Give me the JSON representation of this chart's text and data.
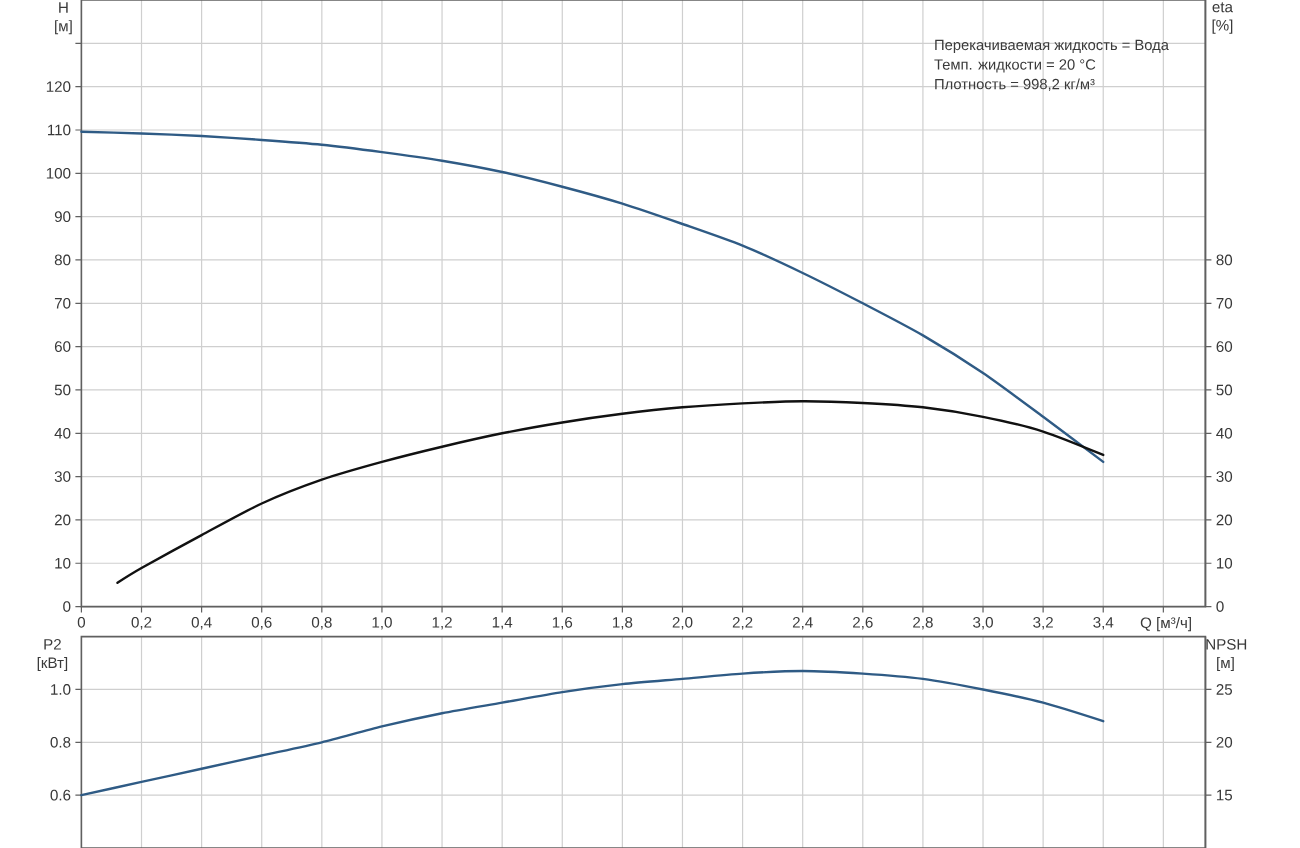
{
  "chart_data": [
    {
      "type": "line",
      "xlabel": "Q [м³/ч]",
      "ylabel": "H [м]",
      "y2label": "eta [%]",
      "annotations": [
        "Перекачиваемая жидкость = Вода",
        "Темп. жидкости = 20 °C",
        "Плотность = 998,2 кг/м³"
      ],
      "xlim": [
        0,
        3.74
      ],
      "xticks": [
        0,
        {
          "value": 0.2,
          "label": "0,2"
        },
        {
          "value": 0.4,
          "label": "0,4"
        },
        {
          "value": 0.6,
          "label": "0,6"
        },
        {
          "value": 0.8,
          "label": "0,8"
        },
        {
          "value": 1.0,
          "label": "1,0"
        },
        {
          "value": 1.2,
          "label": "1,2"
        },
        {
          "value": 1.4,
          "label": "1,4"
        },
        {
          "value": 1.6,
          "label": "1,6"
        },
        {
          "value": 1.8,
          "label": "1,8"
        },
        {
          "value": 2.0,
          "label": "2,0"
        },
        {
          "value": 2.2,
          "label": "2,2"
        },
        {
          "value": 2.4,
          "label": "2,4"
        },
        {
          "value": 2.6,
          "label": "2,6"
        },
        {
          "value": 2.8,
          "label": "2,8"
        },
        {
          "value": 3.0,
          "label": "3,0"
        },
        {
          "value": 3.2,
          "label": "3,2"
        },
        {
          "value": 3.4,
          "label": "3,4"
        },
        {
          "value": 3.6,
          "label": null
        }
      ],
      "ylim": [
        0,
        140
      ],
      "yticks": [
        0,
        10,
        20,
        30,
        40,
        50,
        60,
        70,
        80,
        90,
        100,
        110,
        120,
        {
          "value": 130,
          "label": null
        }
      ],
      "y2lim": [
        0,
        140
      ],
      "y2ticks": [
        0,
        10,
        20,
        30,
        40,
        50,
        60,
        70,
        80
      ],
      "grid": true,
      "series": [
        {
          "color": "#2f5b85",
          "x": [
            0,
            0.2,
            0.4,
            0.6,
            0.8,
            1.0,
            1.2,
            1.4,
            1.6,
            1.8,
            2.0,
            2.2,
            2.4,
            2.6,
            2.8,
            3.0,
            3.2,
            3.4
          ],
          "values": [
            109.6,
            109.2,
            108.6,
            107.7,
            106.6,
            104.9,
            102.9,
            100.3,
            96.9,
            93.0,
            88.3,
            83.3,
            77.0,
            70.0,
            62.6,
            53.9,
            43.8,
            33.4
          ]
        },
        {
          "color": "#111111",
          "axis": "y2",
          "x": [
            0.12,
            0.2,
            0.4,
            0.6,
            0.8,
            1.0,
            1.2,
            1.4,
            1.6,
            1.8,
            2.0,
            2.2,
            2.4,
            2.6,
            2.8,
            3.0,
            3.2,
            3.4
          ],
          "values": [
            5.5,
            8.9,
            16.5,
            23.8,
            29.3,
            33.4,
            36.9,
            40.0,
            42.5,
            44.5,
            46.0,
            46.9,
            47.4,
            47.0,
            46.0,
            43.8,
            40.4,
            35.0
          ]
        }
      ]
    },
    {
      "type": "line",
      "ylabel": "P2 [кВт]",
      "y2label": "NPSH [м]",
      "xlim": [
        0,
        3.74
      ],
      "xticks": [
        0,
        0.2,
        0.4,
        0.6,
        0.8,
        1.0,
        1.2,
        1.4,
        1.6,
        1.8,
        2.0,
        2.2,
        2.4,
        2.6,
        2.8,
        3.0,
        3.2,
        3.4,
        3.6
      ],
      "tick_labels": "y",
      "ylim": [
        0.4,
        1.2
      ],
      "yticks": [
        {
          "value": 0.6,
          "label": "0.6"
        },
        {
          "value": 0.8,
          "label": "0.8"
        },
        {
          "value": 1.0,
          "label": "1.0"
        }
      ],
      "y2lim": [
        10,
        30
      ],
      "y2ticks": [
        15,
        20,
        25
      ],
      "grid": true,
      "series": [
        {
          "color": "#2f5b85",
          "x": [
            0,
            0.2,
            0.4,
            0.6,
            0.8,
            1.0,
            1.2,
            1.4,
            1.6,
            1.8,
            2.0,
            2.2,
            2.4,
            2.6,
            2.8,
            3.0,
            3.2,
            3.4
          ],
          "values": [
            0.6,
            0.65,
            0.7,
            0.75,
            0.8,
            0.86,
            0.91,
            0.95,
            0.99,
            1.02,
            1.04,
            1.06,
            1.07,
            1.06,
            1.04,
            1.0,
            0.95,
            0.88
          ]
        }
      ]
    }
  ]
}
